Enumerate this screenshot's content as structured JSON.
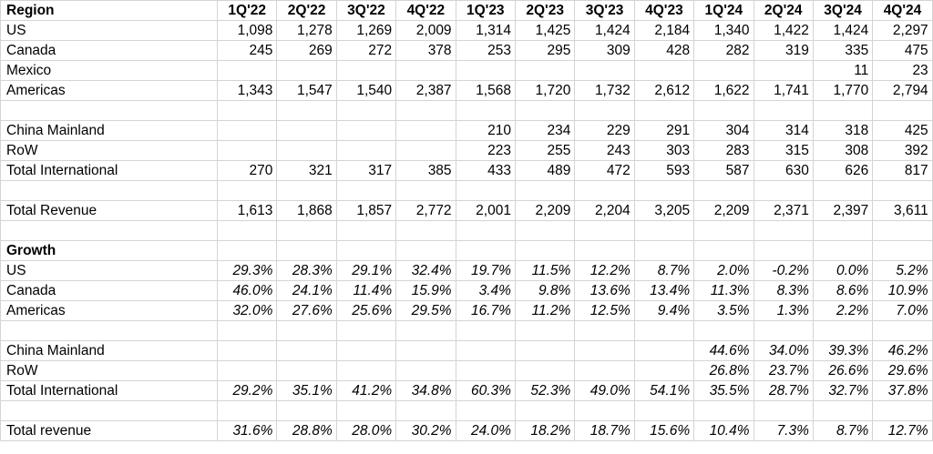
{
  "header": {
    "label": "Region",
    "quarters": [
      "1Q'22",
      "2Q'22",
      "3Q'22",
      "4Q'22",
      "1Q'23",
      "2Q'23",
      "3Q'23",
      "4Q'23",
      "1Q'24",
      "2Q'24",
      "3Q'24",
      "4Q'24"
    ]
  },
  "rows": [
    {
      "type": "data",
      "label": "US",
      "values": [
        "1,098",
        "1,278",
        "1,269",
        "2,009",
        "1,314",
        "1,425",
        "1,424",
        "2,184",
        "1,340",
        "1,422",
        "1,424",
        "2,297"
      ]
    },
    {
      "type": "data",
      "label": "Canada",
      "values": [
        "245",
        "269",
        "272",
        "378",
        "253",
        "295",
        "309",
        "428",
        "282",
        "319",
        "335",
        "475"
      ]
    },
    {
      "type": "data",
      "label": "Mexico",
      "values": [
        "",
        "",
        "",
        "",
        "",
        "",
        "",
        "",
        "",
        "",
        "11",
        "23"
      ]
    },
    {
      "type": "data",
      "label": "Americas",
      "values": [
        "1,343",
        "1,547",
        "1,540",
        "2,387",
        "1,568",
        "1,720",
        "1,732",
        "2,612",
        "1,622",
        "1,741",
        "1,770",
        "2,794"
      ]
    },
    {
      "type": "blank",
      "label": "",
      "values": [
        "",
        "",
        "",
        "",
        "",
        "",
        "",
        "",
        "",
        "",
        "",
        ""
      ]
    },
    {
      "type": "data",
      "label": "China Mainland",
      "values": [
        "",
        "",
        "",
        "",
        "210",
        "234",
        "229",
        "291",
        "304",
        "314",
        "318",
        "425"
      ]
    },
    {
      "type": "data",
      "label": "RoW",
      "values": [
        "",
        "",
        "",
        "",
        "223",
        "255",
        "243",
        "303",
        "283",
        "315",
        "308",
        "392"
      ]
    },
    {
      "type": "data",
      "label": "Total International",
      "values": [
        "270",
        "321",
        "317",
        "385",
        "433",
        "489",
        "472",
        "593",
        "587",
        "630",
        "626",
        "817"
      ]
    },
    {
      "type": "blank",
      "label": "",
      "values": [
        "",
        "",
        "",
        "",
        "",
        "",
        "",
        "",
        "",
        "",
        "",
        ""
      ]
    },
    {
      "type": "data",
      "label": "Total Revenue",
      "values": [
        "1,613",
        "1,868",
        "1,857",
        "2,772",
        "2,001",
        "2,209",
        "2,204",
        "3,205",
        "2,209",
        "2,371",
        "2,397",
        "3,611"
      ]
    },
    {
      "type": "blank",
      "label": "",
      "values": [
        "",
        "",
        "",
        "",
        "",
        "",
        "",
        "",
        "",
        "",
        "",
        ""
      ]
    },
    {
      "type": "section",
      "label": "Growth",
      "values": [
        "",
        "",
        "",
        "",
        "",
        "",
        "",
        "",
        "",
        "",
        "",
        ""
      ]
    },
    {
      "type": "pct",
      "label": "US",
      "values": [
        "29.3%",
        "28.3%",
        "29.1%",
        "32.4%",
        "19.7%",
        "11.5%",
        "12.2%",
        "8.7%",
        "2.0%",
        "-0.2%",
        "0.0%",
        "5.2%"
      ]
    },
    {
      "type": "pct",
      "label": "Canada",
      "values": [
        "46.0%",
        "24.1%",
        "11.4%",
        "15.9%",
        "3.4%",
        "9.8%",
        "13.6%",
        "13.4%",
        "11.3%",
        "8.3%",
        "8.6%",
        "10.9%"
      ]
    },
    {
      "type": "pct",
      "label": "Americas",
      "values": [
        "32.0%",
        "27.6%",
        "25.6%",
        "29.5%",
        "16.7%",
        "11.2%",
        "12.5%",
        "9.4%",
        "3.5%",
        "1.3%",
        "2.2%",
        "7.0%"
      ]
    },
    {
      "type": "blank",
      "label": "",
      "values": [
        "",
        "",
        "",
        "",
        "",
        "",
        "",
        "",
        "",
        "",
        "",
        ""
      ]
    },
    {
      "type": "pct",
      "label": "China Mainland",
      "values": [
        "",
        "",
        "",
        "",
        "",
        "",
        "",
        "",
        "44.6%",
        "34.0%",
        "39.3%",
        "46.2%"
      ]
    },
    {
      "type": "pct",
      "label": "RoW",
      "values": [
        "",
        "",
        "",
        "",
        "",
        "",
        "",
        "",
        "26.8%",
        "23.7%",
        "26.6%",
        "29.6%"
      ]
    },
    {
      "type": "pct",
      "label": "Total International",
      "values": [
        "29.2%",
        "35.1%",
        "41.2%",
        "34.8%",
        "60.3%",
        "52.3%",
        "49.0%",
        "54.1%",
        "35.5%",
        "28.7%",
        "32.7%",
        "37.8%"
      ]
    },
    {
      "type": "blank",
      "label": "",
      "values": [
        "",
        "",
        "",
        "",
        "",
        "",
        "",
        "",
        "",
        "",
        "",
        ""
      ]
    },
    {
      "type": "pct",
      "label": "Total revenue",
      "values": [
        "31.6%",
        "28.8%",
        "28.0%",
        "30.2%",
        "24.0%",
        "18.2%",
        "18.7%",
        "15.6%",
        "10.4%",
        "7.3%",
        "8.7%",
        "12.7%"
      ]
    }
  ]
}
